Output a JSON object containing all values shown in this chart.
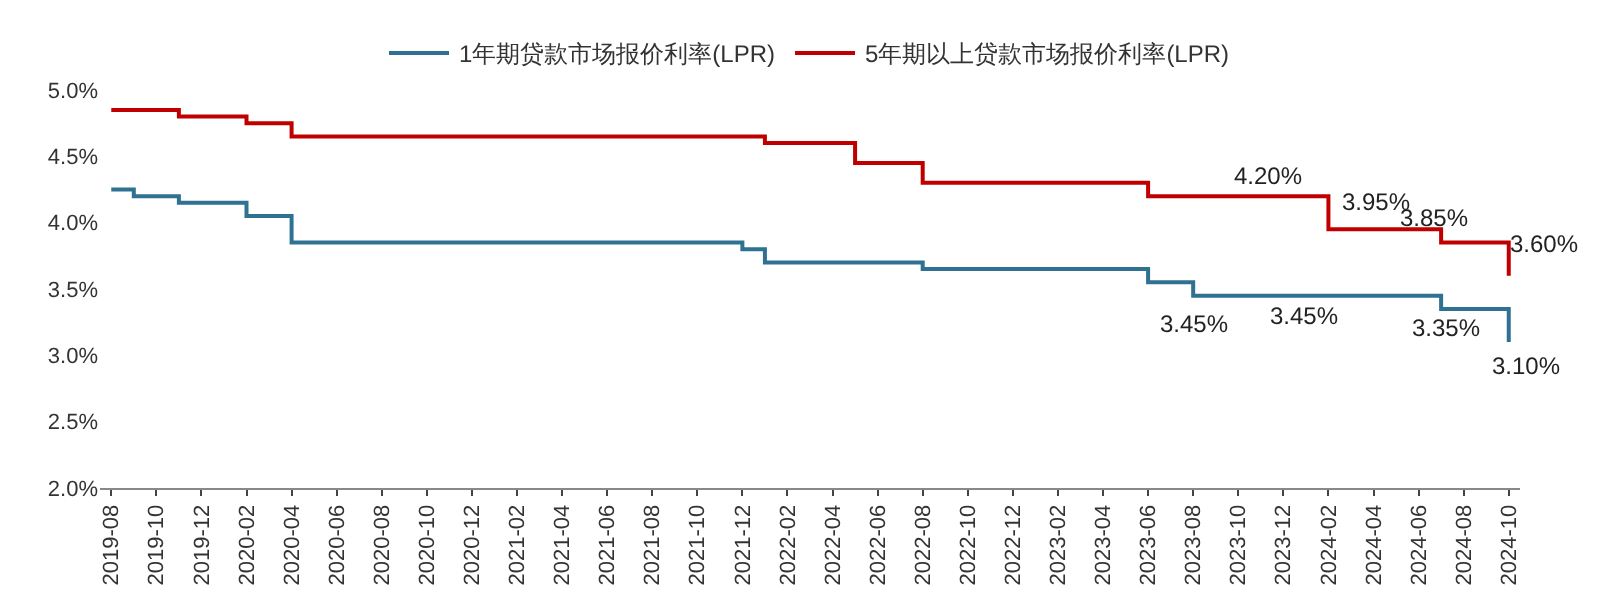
{
  "chart_data": {
    "type": "step",
    "categories": [
      "2019-08",
      null,
      "2019-10",
      null,
      "2019-12",
      null,
      "2020-02",
      null,
      "2020-04",
      null,
      "2020-06",
      null,
      "2020-08",
      null,
      "2020-10",
      null,
      "2020-12",
      null,
      "2021-02",
      null,
      "2021-04",
      null,
      "2021-06",
      null,
      "2021-08",
      null,
      "2021-10",
      null,
      "2021-12",
      null,
      "2022-02",
      null,
      "2022-04",
      null,
      "2022-06",
      null,
      "2022-08",
      null,
      "2022-10",
      null,
      "2022-12",
      null,
      "2023-02",
      null,
      "2023-04",
      null,
      "2023-06",
      null,
      "2023-08",
      null,
      "2023-10",
      null,
      "2023-12",
      null,
      "2024-02",
      null,
      "2024-04",
      null,
      "2024-06",
      null,
      "2024-08",
      null,
      "2024-10"
    ],
    "series": [
      {
        "name": "1年期贷款市场报价利率(LPR)",
        "color": "#2e7191",
        "values": [
          4.25,
          4.2,
          4.2,
          4.15,
          4.15,
          4.15,
          4.05,
          4.05,
          3.85,
          3.85,
          3.85,
          3.85,
          3.85,
          3.85,
          3.85,
          3.85,
          3.85,
          3.85,
          3.85,
          3.85,
          3.85,
          3.85,
          3.85,
          3.85,
          3.85,
          3.85,
          3.85,
          3.85,
          3.8,
          3.7,
          3.7,
          3.7,
          3.7,
          3.7,
          3.7,
          3.7,
          3.65,
          3.65,
          3.65,
          3.65,
          3.65,
          3.65,
          3.65,
          3.65,
          3.65,
          3.65,
          3.55,
          3.55,
          3.45,
          3.45,
          3.45,
          3.45,
          3.45,
          3.45,
          3.45,
          3.45,
          3.45,
          3.45,
          3.45,
          3.35,
          3.35,
          3.35,
          3.1
        ]
      },
      {
        "name": "5年期以上贷款市场报价利率(LPR)",
        "color": "#c00000",
        "values": [
          4.85,
          4.85,
          4.85,
          4.8,
          4.8,
          4.8,
          4.75,
          4.75,
          4.65,
          4.65,
          4.65,
          4.65,
          4.65,
          4.65,
          4.65,
          4.65,
          4.65,
          4.65,
          4.65,
          4.65,
          4.65,
          4.65,
          4.65,
          4.65,
          4.65,
          4.65,
          4.65,
          4.65,
          4.65,
          4.6,
          4.6,
          4.6,
          4.6,
          4.45,
          4.45,
          4.45,
          4.3,
          4.3,
          4.3,
          4.3,
          4.3,
          4.3,
          4.3,
          4.3,
          4.3,
          4.3,
          4.2,
          4.2,
          4.2,
          4.2,
          4.2,
          4.2,
          4.2,
          4.2,
          3.95,
          3.95,
          3.95,
          3.95,
          3.95,
          3.85,
          3.85,
          3.85,
          3.6
        ]
      }
    ],
    "ylim": [
      2.0,
      5.0
    ],
    "yticks": [
      {
        "value": 2.0,
        "label": "2.0%"
      },
      {
        "value": 2.5,
        "label": "2.5%"
      },
      {
        "value": 3.0,
        "label": "3.0%"
      },
      {
        "value": 3.5,
        "label": "3.5%"
      },
      {
        "value": 4.0,
        "label": "4.0%"
      },
      {
        "value": 4.5,
        "label": "4.5%"
      },
      {
        "value": 5.0,
        "label": "5.0%"
      }
    ],
    "grid": false,
    "legend": "top",
    "marker": "none",
    "line_style": "solid",
    "annotations": [
      {
        "text": "3.45%",
        "x": "2023-08",
        "y": 3.45
      },
      {
        "text": "4.20%",
        "x": "2023-10",
        "y": 4.2
      },
      {
        "text": "3.95%",
        "x": "2024-02",
        "y": 3.95
      },
      {
        "text": "3.45%",
        "x": "2024-02",
        "y": 3.45
      },
      {
        "text": "3.85%",
        "x": "2024-08",
        "y": 3.85
      },
      {
        "text": "3.35%",
        "x": "2024-08",
        "y": 3.35
      },
      {
        "text": "3.60%",
        "x": "2024-10",
        "y": 3.6
      },
      {
        "text": "3.10%",
        "x": "2024-10",
        "y": 3.1
      }
    ]
  }
}
